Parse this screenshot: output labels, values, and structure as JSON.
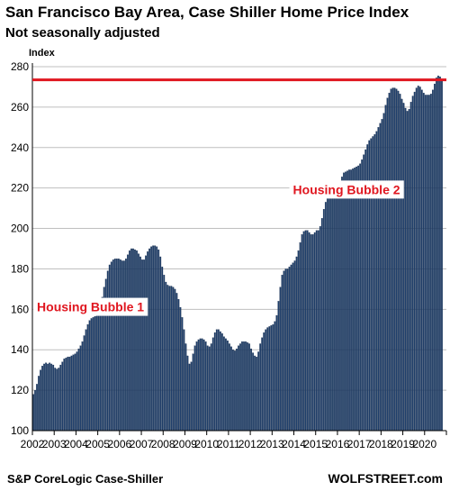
{
  "chart_data": {
    "type": "bar",
    "title": "San Francisco Bay Area, Case Shiller Home Price Index",
    "subtitle": "Not seasonally adjusted",
    "ylabel": "Index",
    "xlabel": "",
    "ylim": [
      100,
      280
    ],
    "yticks": [
      100,
      120,
      140,
      160,
      180,
      200,
      220,
      240,
      260,
      280
    ],
    "year_labels": [
      "2002",
      "2003",
      "2004",
      "2005",
      "2006",
      "2007",
      "2008",
      "2009",
      "2010",
      "2011",
      "2012",
      "2013",
      "2014",
      "2015",
      "2016",
      "2017",
      "2018",
      "2019",
      "2020"
    ],
    "frequency": "monthly",
    "start": "2002-01",
    "values": [
      118,
      120,
      123,
      127,
      130,
      132,
      133,
      133.5,
      133,
      133.5,
      133,
      132.5,
      131,
      130.5,
      131,
      132.5,
      134,
      135.5,
      136,
      136.5,
      136.5,
      137,
      137.5,
      138,
      139,
      140.5,
      142,
      144,
      147,
      150,
      152.5,
      154.5,
      155.5,
      156,
      156.5,
      157,
      159,
      162,
      166,
      171,
      175,
      179,
      182,
      183.5,
      184.5,
      185,
      185,
      185,
      184.5,
      184,
      184,
      185,
      187,
      189,
      190,
      190,
      189.5,
      189,
      187.5,
      186,
      184.5,
      184.5,
      186.5,
      188.5,
      190,
      191,
      191.5,
      191.5,
      191,
      189.5,
      186,
      181,
      177,
      173.5,
      172,
      171.5,
      171.5,
      171,
      170,
      168,
      165,
      161,
      156,
      150,
      143,
      137,
      133,
      134,
      138,
      142,
      144,
      145,
      145.5,
      145.5,
      145,
      144,
      142,
      141.5,
      143,
      146,
      148.5,
      150,
      150,
      149,
      148,
      146.5,
      145.5,
      144.5,
      143,
      141.5,
      140,
      139.5,
      140.5,
      142,
      143,
      144,
      144,
      144,
      143.5,
      143,
      140.5,
      138.5,
      137,
      136.5,
      139,
      143,
      146,
      148.5,
      150,
      151,
      151.5,
      152,
      152.5,
      154,
      157,
      164,
      171,
      177,
      179,
      180,
      180,
      181,
      182,
      183,
      184,
      186,
      189,
      193,
      197,
      198.5,
      199,
      199,
      198,
      197,
      197,
      198,
      199,
      199,
      201,
      205,
      209.5,
      213,
      215.5,
      217,
      217.5,
      218,
      219,
      220,
      221,
      223,
      225.5,
      227.5,
      228,
      228.5,
      229,
      229,
      229.5,
      230,
      230.5,
      231,
      232,
      234,
      236.5,
      239,
      241.5,
      243.5,
      244.5,
      245.5,
      246.5,
      248,
      250,
      252,
      254,
      257,
      261,
      264.5,
      267,
      269,
      269.5,
      269.5,
      269,
      268,
      266.5,
      264,
      262,
      259.5,
      258,
      259,
      262.5,
      265.5,
      267.5,
      269.5,
      270.5,
      270,
      268.5,
      267,
      266,
      266,
      266,
      266.5,
      268.5,
      271.5,
      274.5,
      275.5,
      275,
      273.5
    ],
    "bar_color": "#1f3f6b",
    "reference_line": {
      "value": 273.5,
      "color": "#e0161f"
    },
    "annotations": [
      {
        "text": "Housing Bubble 1",
        "x": "2004-09",
        "y": 159,
        "color": "#e0161f"
      },
      {
        "text": "Housing Bubble 2",
        "x": "2016-06",
        "y": 217,
        "color": "#e0161f"
      }
    ],
    "grid": "horizontal"
  },
  "footer": {
    "source": "S&P CoreLogic Case-Shiller",
    "brand": "WOLFSTREET.com"
  }
}
